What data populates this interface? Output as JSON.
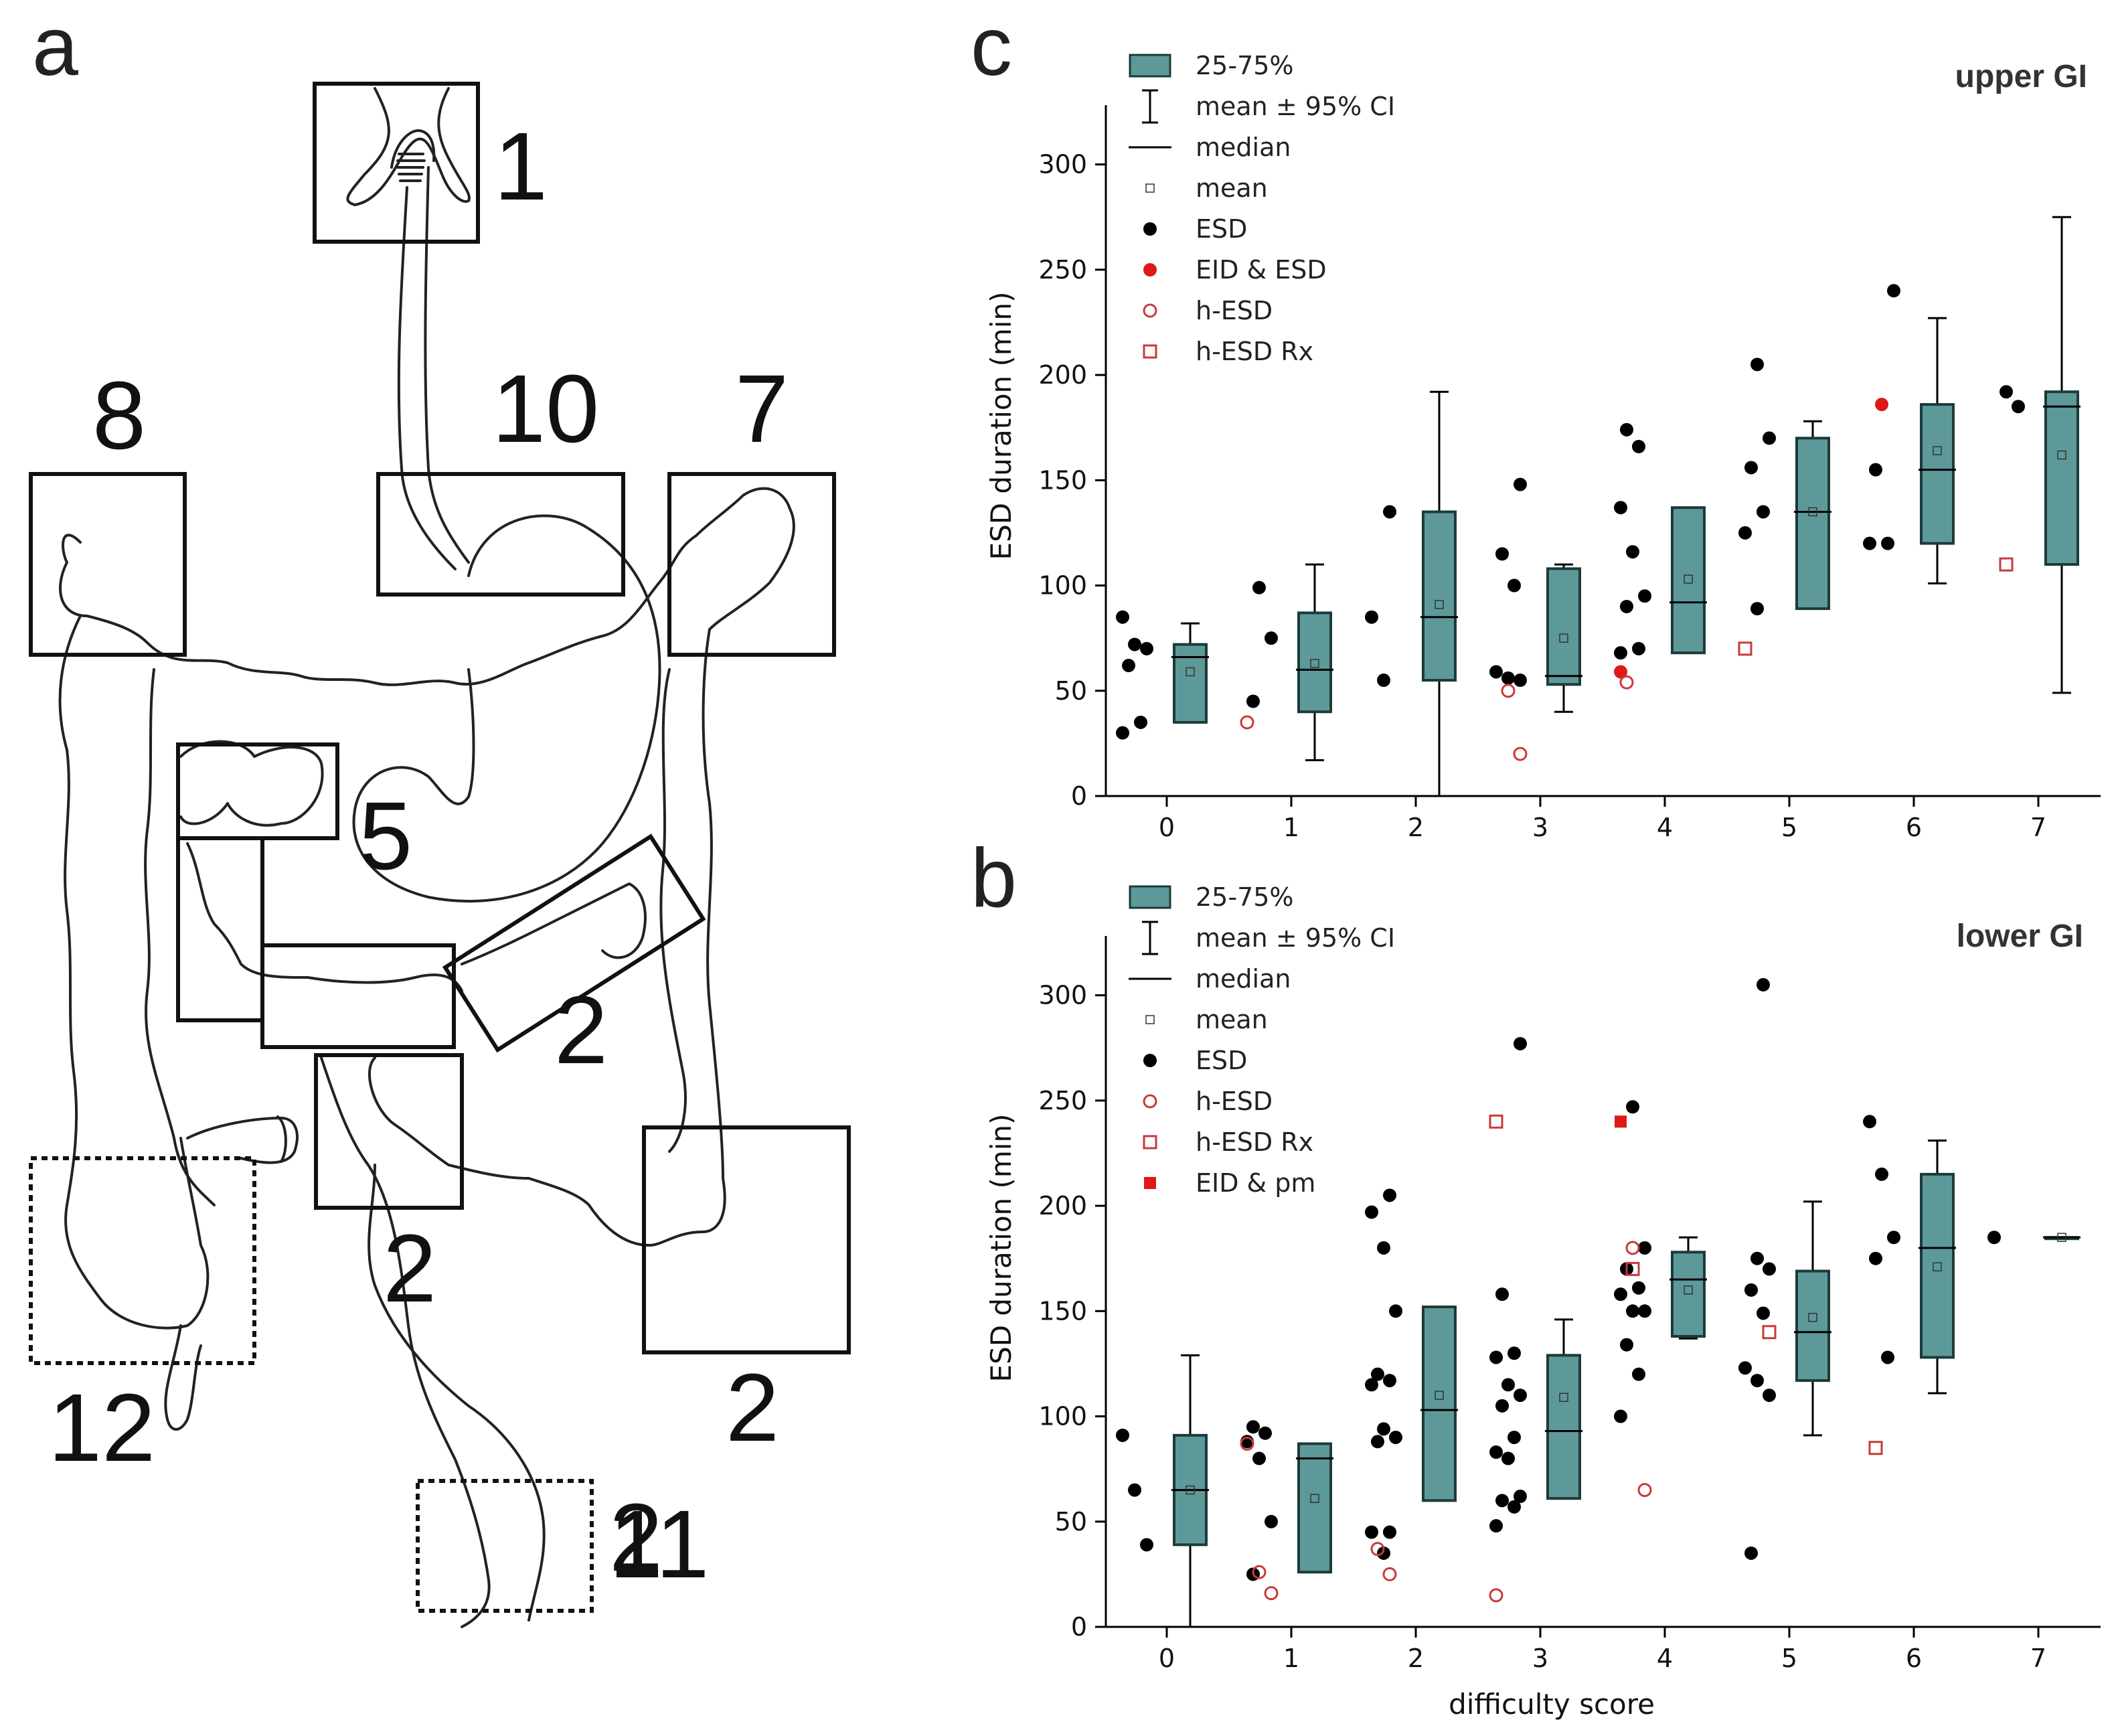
{
  "panel_labels": {
    "anatomy": "a",
    "upper": "c",
    "lower": "b"
  },
  "anatomy_regions": [
    "1",
    "10",
    "8",
    "7",
    "5",
    "2",
    "2",
    "2",
    "2",
    "12",
    "11"
  ],
  "colors": {
    "box_fill": "#5e9999",
    "box_stroke": "#1c3a3a",
    "esd": "#000000",
    "red": "#e01818",
    "hollow_red": "#c83a3a"
  },
  "legend_upper": [
    "25-75%",
    "mean ± 95% CI",
    "median",
    "mean",
    "ESD",
    "EID & ESD",
    "h-ESD",
    "h-ESD Rx"
  ],
  "legend_lower": [
    "25-75%",
    "mean ± 95% CI",
    "median",
    "mean",
    "ESD",
    "h-ESD",
    "h-ESD Rx",
    "EID & pm"
  ],
  "chart_data": [
    {
      "type": "box",
      "title": "upper GI",
      "xlabel": "",
      "ylabel": "ESD duration (min)",
      "ylim": [
        0,
        325
      ],
      "yticks": [
        0,
        50,
        100,
        150,
        200,
        250,
        300
      ],
      "categories": [
        "0",
        "1",
        "2",
        "3",
        "4",
        "5",
        "6",
        "7"
      ],
      "boxes": [
        {
          "x": 0,
          "q1": 35,
          "q3": 72,
          "median": 66,
          "mean": 59,
          "ci_low": 35,
          "ci_high": 82
        },
        {
          "x": 1,
          "q1": 40,
          "q3": 87,
          "median": 60,
          "mean": 63,
          "ci_low": 17,
          "ci_high": 110
        },
        {
          "x": 2,
          "q1": 55,
          "q3": 135,
          "median": 85,
          "mean": 91,
          "ci_low": 0,
          "ci_high": 192
        },
        {
          "x": 3,
          "q1": 53,
          "q3": 108,
          "median": 57,
          "mean": 75,
          "ci_low": 40,
          "ci_high": 110
        },
        {
          "x": 4,
          "q1": 68,
          "q3": 137,
          "median": 92,
          "mean": 103,
          "ci_low": 71,
          "ci_high": 135
        },
        {
          "x": 5,
          "q1": 89,
          "q3": 170,
          "median": 135,
          "mean": 135,
          "ci_low": 92,
          "ci_high": 178
        },
        {
          "x": 6,
          "q1": 120,
          "q3": 186,
          "median": 155,
          "mean": 164,
          "ci_low": 101,
          "ci_high": 227
        },
        {
          "x": 7,
          "q1": 110,
          "q3": 192,
          "median": 185,
          "mean": 162,
          "ci_low": 49,
          "ci_high": 275
        }
      ],
      "points": {
        "ESD": [
          [
            0,
            85
          ],
          [
            0,
            72
          ],
          [
            0,
            70
          ],
          [
            0,
            62
          ],
          [
            0,
            35
          ],
          [
            0,
            30
          ],
          [
            1,
            99
          ],
          [
            1,
            75
          ],
          [
            1,
            45
          ],
          [
            2,
            135
          ],
          [
            2,
            85
          ],
          [
            2,
            55
          ],
          [
            3,
            148
          ],
          [
            3,
            115
          ],
          [
            3,
            100
          ],
          [
            3,
            59
          ],
          [
            3,
            56
          ],
          [
            3,
            55
          ],
          [
            4,
            174
          ],
          [
            4,
            166
          ],
          [
            4,
            137
          ],
          [
            4,
            116
          ],
          [
            4,
            95
          ],
          [
            4,
            90
          ],
          [
            4,
            70
          ],
          [
            4,
            68
          ],
          [
            5,
            205
          ],
          [
            5,
            170
          ],
          [
            5,
            156
          ],
          [
            5,
            135
          ],
          [
            5,
            125
          ],
          [
            5,
            89
          ],
          [
            6,
            240
          ],
          [
            6,
            155
          ],
          [
            6,
            120
          ],
          [
            6,
            120
          ],
          [
            7,
            192
          ],
          [
            7,
            185
          ]
        ],
        "EID & ESD": [
          [
            4,
            59
          ],
          [
            6,
            186
          ]
        ],
        "h-ESD": [
          [
            1,
            35
          ],
          [
            3,
            50
          ],
          [
            3,
            20
          ],
          [
            4,
            54
          ]
        ],
        "h-ESD Rx": [
          [
            5,
            70
          ],
          [
            7,
            110
          ]
        ]
      }
    },
    {
      "type": "box",
      "title": "lower GI",
      "xlabel": "difficulty score",
      "ylabel": "ESD duration (min)",
      "ylim": [
        0,
        325
      ],
      "yticks": [
        0,
        50,
        100,
        150,
        200,
        250,
        300
      ],
      "categories": [
        "0",
        "1",
        "2",
        "3",
        "4",
        "5",
        "6",
        "7"
      ],
      "boxes": [
        {
          "x": 0,
          "q1": 39,
          "q3": 91,
          "median": 65,
          "mean": 65,
          "ci_low": 0,
          "ci_high": 129
        },
        {
          "x": 1,
          "q1": 26,
          "q3": 87,
          "median": 80,
          "mean": 61,
          "ci_low": 26,
          "ci_high": 37
        },
        {
          "x": 2,
          "q1": 60,
          "q3": 152,
          "median": 103,
          "mean": 110,
          "ci_low": 81,
          "ci_high": 139
        },
        {
          "x": 3,
          "q1": 61,
          "q3": 129,
          "median": 93,
          "mean": 109,
          "ci_low": 73,
          "ci_high": 146
        },
        {
          "x": 4,
          "q1": 138,
          "q3": 178,
          "median": 165,
          "mean": 160,
          "ci_low": 137,
          "ci_high": 185
        },
        {
          "x": 5,
          "q1": 117,
          "q3": 169,
          "median": 140,
          "mean": 147,
          "ci_low": 91,
          "ci_high": 202
        },
        {
          "x": 6,
          "q1": 128,
          "q3": 215,
          "median": 180,
          "mean": 171,
          "ci_low": 111,
          "ci_high": 231
        },
        {
          "x": 7,
          "q1": 185,
          "q3": 185,
          "median": 185,
          "mean": 185,
          "ci_low": 185,
          "ci_high": 185
        }
      ],
      "points": {
        "ESD": [
          [
            0,
            91
          ],
          [
            0,
            65
          ],
          [
            0,
            39
          ],
          [
            1,
            95
          ],
          [
            1,
            92
          ],
          [
            1,
            88
          ],
          [
            1,
            80
          ],
          [
            1,
            50
          ],
          [
            1,
            25
          ],
          [
            2,
            205
          ],
          [
            2,
            197
          ],
          [
            2,
            180
          ],
          [
            2,
            150
          ],
          [
            2,
            120
          ],
          [
            2,
            117
          ],
          [
            2,
            115
          ],
          [
            2,
            94
          ],
          [
            2,
            90
          ],
          [
            2,
            88
          ],
          [
            2,
            45
          ],
          [
            2,
            45
          ],
          [
            2,
            35
          ],
          [
            3,
            277
          ],
          [
            3,
            158
          ],
          [
            3,
            130
          ],
          [
            3,
            128
          ],
          [
            3,
            115
          ],
          [
            3,
            110
          ],
          [
            3,
            105
          ],
          [
            3,
            90
          ],
          [
            3,
            83
          ],
          [
            3,
            80
          ],
          [
            3,
            62
          ],
          [
            3,
            60
          ],
          [
            3,
            57
          ],
          [
            3,
            48
          ],
          [
            4,
            247
          ],
          [
            4,
            180
          ],
          [
            4,
            170
          ],
          [
            4,
            161
          ],
          [
            4,
            158
          ],
          [
            4,
            150
          ],
          [
            4,
            150
          ],
          [
            4,
            134
          ],
          [
            4,
            120
          ],
          [
            4,
            100
          ],
          [
            5,
            175
          ],
          [
            5,
            170
          ],
          [
            5,
            160
          ],
          [
            5,
            149
          ],
          [
            5,
            123
          ],
          [
            5,
            117
          ],
          [
            5,
            110
          ],
          [
            5,
            35
          ],
          [
            5,
            305
          ],
          [
            6,
            240
          ],
          [
            6,
            215
          ],
          [
            6,
            185
          ],
          [
            6,
            175
          ],
          [
            6,
            128
          ],
          [
            7,
            185
          ]
        ],
        "h-ESD": [
          [
            1,
            87
          ],
          [
            1,
            26
          ],
          [
            1,
            16
          ],
          [
            2,
            37
          ],
          [
            2,
            25
          ],
          [
            3,
            15
          ],
          [
            4,
            180
          ],
          [
            4,
            65
          ]
        ],
        "h-ESD Rx": [
          [
            3,
            240
          ],
          [
            4,
            170
          ],
          [
            5,
            140
          ],
          [
            6,
            85
          ]
        ],
        "EID & pm": [
          [
            4,
            240
          ]
        ]
      }
    }
  ]
}
